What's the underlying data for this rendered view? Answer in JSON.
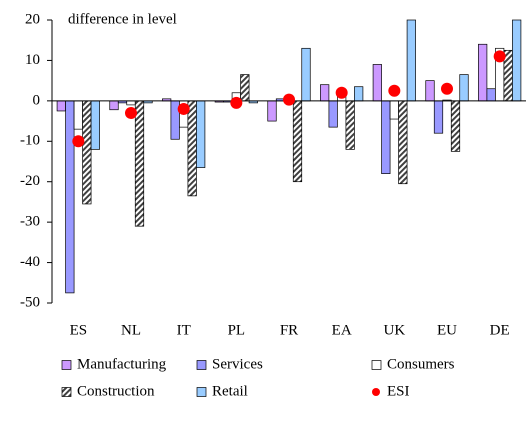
{
  "chart_data": {
    "type": "bar",
    "annotation": "difference in level",
    "categories": [
      "ES",
      "NL",
      "IT",
      "PL",
      "FR",
      "EA",
      "UK",
      "EU",
      "DE"
    ],
    "series": [
      {
        "name": "Manufacturing",
        "color": "#cc99ff",
        "kind": "bar",
        "values": [
          -2.5,
          -2.2,
          0.5,
          -0.3,
          -5,
          4,
          9,
          5,
          14
        ]
      },
      {
        "name": "Services",
        "color": "#9999ff",
        "kind": "bar",
        "values": [
          -47.5,
          -0.5,
          -9.5,
          -0.3,
          0.5,
          -6.5,
          -18,
          -8,
          3
        ]
      },
      {
        "name": "Consumers",
        "color": "#ffffff",
        "kind": "bar",
        "values": [
          -7,
          -1,
          -6.5,
          2,
          0.5,
          1.5,
          -4.5,
          0.2,
          13
        ]
      },
      {
        "name": "Construction",
        "color": "#404040",
        "kind": "bar",
        "hatch": true,
        "values": [
          -25.5,
          -31,
          -23.5,
          6.5,
          -20,
          -12,
          -20.5,
          -12.5,
          12.5
        ]
      },
      {
        "name": "Retail",
        "color": "#99ccff",
        "kind": "bar",
        "values": [
          -12,
          -0.5,
          -16.5,
          -0.5,
          13,
          3.5,
          20,
          6.5,
          20
        ]
      },
      {
        "name": "ESI",
        "color": "#ff0000",
        "kind": "dot",
        "values": [
          -10,
          -3,
          -2,
          -0.5,
          0.3,
          2,
          2.5,
          3,
          11
        ]
      }
    ],
    "ylim": [
      -50,
      20
    ],
    "yticks": [
      -50,
      -40,
      -30,
      -20,
      -10,
      0,
      10,
      20
    ]
  }
}
